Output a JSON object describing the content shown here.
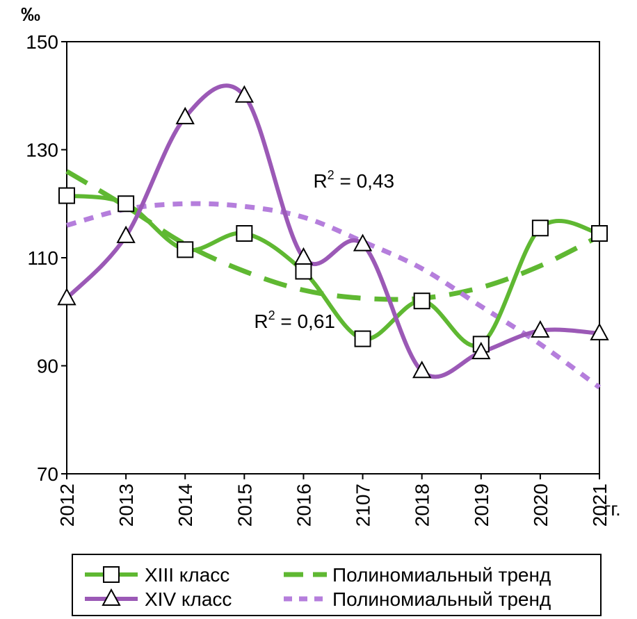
{
  "chart_data": {
    "type": "line",
    "ylabel": "‰",
    "xunit": "гг.",
    "ylim": [
      70,
      150
    ],
    "yticks": [
      "70",
      "90",
      "110",
      "130",
      "150"
    ],
    "categories": [
      "2012",
      "2013",
      "2014",
      "2015",
      "2016",
      "2107",
      "2018",
      "2019",
      "2020",
      "2021"
    ],
    "grid": false,
    "legend_position": "bottom",
    "series": [
      {
        "name": "XIII класс",
        "color": "#5fb832",
        "marker": "square",
        "values": [
          121.5,
          120.0,
          111.5,
          114.5,
          107.5,
          95.0,
          102.0,
          94.0,
          115.5,
          114.5
        ]
      },
      {
        "name": "XIV класс",
        "color": "#9b59b6",
        "marker": "triangle",
        "values": [
          102.5,
          114.0,
          136.0,
          140.0,
          110.0,
          112.5,
          89.0,
          92.5,
          96.5,
          96.0
        ]
      }
    ],
    "trends": [
      {
        "name": "Полиномиальный тренд",
        "color": "#5fb832",
        "style": "long-dash",
        "values": [
          126.0,
          119.5,
          112.5,
          107.5,
          104.0,
          102.5,
          102.5,
          104.5,
          108.5,
          114.0
        ]
      },
      {
        "name": "Полиномиальный тренд",
        "color": "#b57edc",
        "style": "short-dash",
        "values": [
          116.0,
          119.0,
          120.0,
          119.5,
          117.5,
          113.0,
          108.0,
          101.0,
          94.0,
          86.0
        ]
      }
    ],
    "annotations": [
      {
        "text": "R",
        "sup": "2",
        "rest": " = 0,43",
        "x": "2016",
        "y": 123
      },
      {
        "text": "R",
        "sup": "2",
        "rest": " = 0,61",
        "x": "2015",
        "y": 97
      }
    ]
  }
}
